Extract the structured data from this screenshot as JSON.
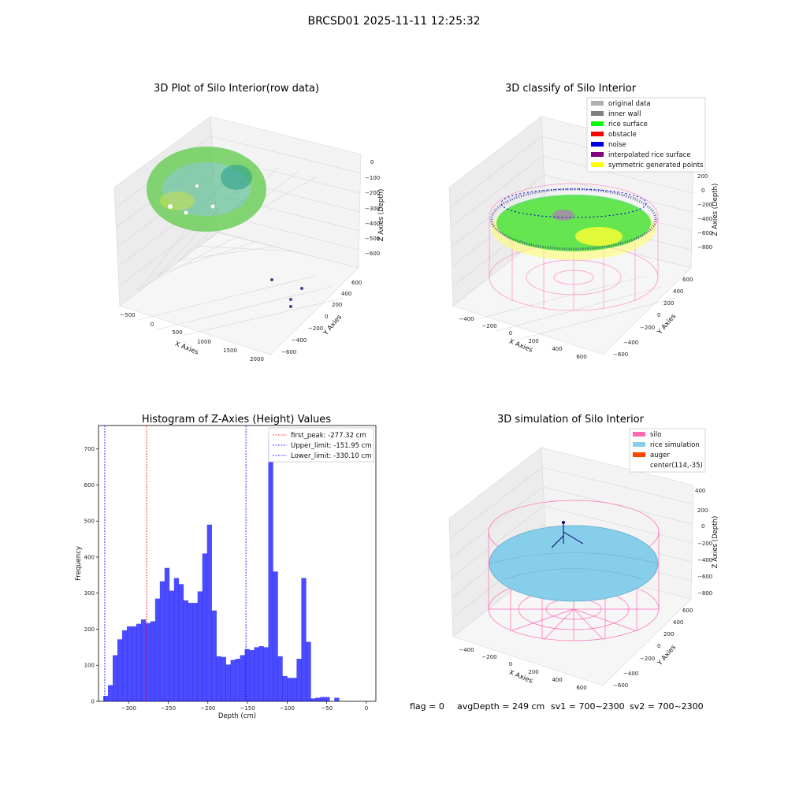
{
  "figure": {
    "suptitle": "BRCSD01 2025-11-11 12:25:32",
    "footer": {
      "flag": "flag = 0",
      "avg_depth": "avgDepth = 249 cm",
      "sv1": "sv1 = 700~2300",
      "sv2": "sv2 = 700~2300"
    }
  },
  "panels": {
    "raw": {
      "title": "3D Plot of Silo Interior(row data)",
      "xlabel": "X Axies",
      "ylabel": "Y Axies",
      "zlabel": "Z Axies (Depth)",
      "xticks": [
        "−500",
        "0",
        "500",
        "1000",
        "1500",
        "2000"
      ],
      "yticks": [
        "−600",
        "−400",
        "−200",
        "0",
        "200",
        "400",
        "600"
      ],
      "zticks": [
        "0",
        "−100",
        "−200",
        "−300",
        "−400",
        "−500",
        "−600"
      ]
    },
    "classify": {
      "title": "3D classify of Silo Interior",
      "xlabel": "X Axies",
      "ylabel": "Y Axies",
      "zlabel": "Z Axies (Depth)",
      "xticks": [
        "−400",
        "−200",
        "0",
        "200",
        "400",
        "600"
      ],
      "yticks": [
        "−600",
        "−400",
        "−200",
        "0",
        "200",
        "400",
        "600"
      ],
      "zticks": [
        "200",
        "0",
        "−200",
        "−400",
        "−600",
        "−800"
      ],
      "legend": [
        {
          "label": "original data",
          "color": "#b0b0b0"
        },
        {
          "label": "inner wall",
          "color": "#808080"
        },
        {
          "label": "rice surface",
          "color": "#00ff00"
        },
        {
          "label": "obstacle",
          "color": "#ff0000"
        },
        {
          "label": "noise",
          "color": "#0000dd"
        },
        {
          "label": "interpolated rice surface",
          "color": "#800080"
        },
        {
          "label": "symmetric generated points",
          "color": "#ffff00"
        }
      ]
    },
    "simulation": {
      "title": "3D simulation of Silo Interior",
      "xlabel": "X Axies",
      "ylabel": "Y Axies",
      "zlabel": "Z Axies (Depth)",
      "xticks": [
        "−400",
        "−200",
        "0",
        "200",
        "400",
        "600"
      ],
      "yticks": [
        "−600",
        "−400",
        "−200",
        "0",
        "200",
        "400",
        "600"
      ],
      "zticks": [
        "400",
        "200",
        "0",
        "−200",
        "−400",
        "−600",
        "−800"
      ],
      "legend": [
        {
          "label": "silo",
          "color": "#ff69b4"
        },
        {
          "label": "rice simulation",
          "color": "#87ceeb"
        },
        {
          "label": "auger",
          "color": "#ff4500"
        },
        {
          "label": "center(114,-35)",
          "color": ""
        }
      ]
    }
  },
  "chart_data": [
    {
      "type": "histogram",
      "title": "Histogram of Z-Axies (Height) Values",
      "xlabel": "Depth (cm)",
      "ylabel": "Frequency",
      "bar_color": "#0000ff",
      "xlim": [
        -338,
        12
      ],
      "ylim": [
        0,
        765
      ],
      "xticks": [
        -300,
        -250,
        -200,
        -150,
        -100,
        -50,
        0
      ],
      "yticks": [
        0,
        100,
        200,
        300,
        400,
        500,
        600,
        700
      ],
      "bin_start": -332,
      "bin_width": 5.95,
      "values": [
        15,
        45,
        128,
        172,
        197,
        208,
        208,
        215,
        227,
        217,
        222,
        285,
        333,
        370,
        307,
        342,
        325,
        280,
        273,
        273,
        305,
        410,
        490,
        252,
        125,
        123,
        102,
        115,
        118,
        128,
        145,
        142,
        150,
        153,
        150,
        723,
        360,
        125,
        70,
        65,
        65,
        118,
        342,
        165,
        8,
        10,
        12,
        12,
        0,
        10
      ],
      "vlines": [
        {
          "label": "first_peak: -277.32 cm",
          "x": -277.32,
          "color": "#ff0000"
        },
        {
          "label": "Upper_limit: -151.95 cm",
          "x": -151.95,
          "color": "#0000ff"
        },
        {
          "label": "Lower_limit: -330.10 cm",
          "x": -330.1,
          "color": "#0000ff"
        }
      ],
      "legend_position": "upper right"
    }
  ]
}
